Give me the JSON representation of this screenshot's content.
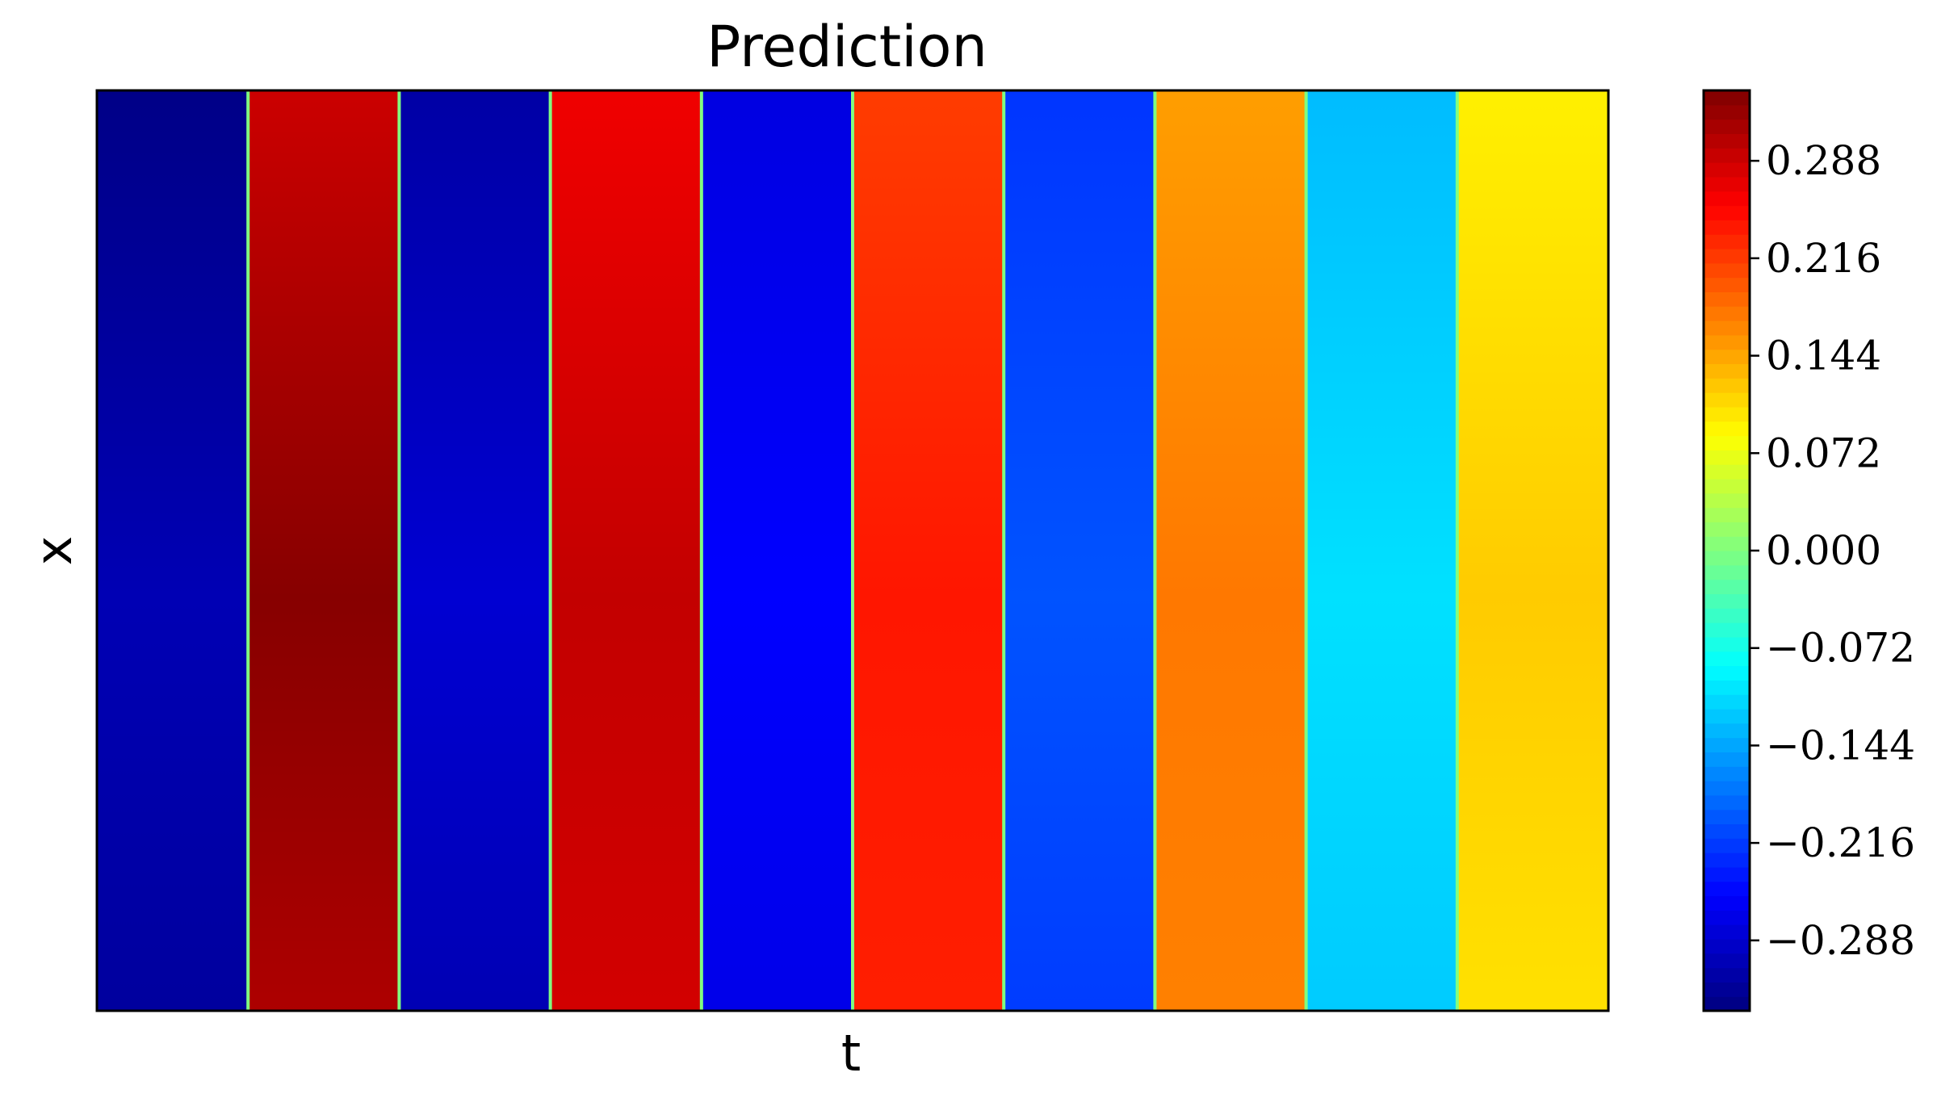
{
  "chart_data": {
    "type": "heatmap",
    "title": "Prediction",
    "xlabel": "t",
    "ylabel": "x",
    "colormap": "jet",
    "color_range": [
      -0.34,
      0.34
    ],
    "colorbar_ticks": [
      "−0.288",
      "−0.216",
      "−0.144",
      "−0.072",
      "0.000",
      "0.072",
      "0.144",
      "0.216",
      "0.288"
    ],
    "colorbar_tick_values": [
      -0.288,
      -0.216,
      -0.144,
      -0.072,
      0.0,
      0.072,
      0.144,
      0.216,
      0.288
    ],
    "x_ticks_shown": false,
    "y_ticks_shown": false,
    "bands": [
      {
        "t_start": 0.0,
        "t_end": 0.1,
        "top": -0.335,
        "mid": -0.305,
        "bottom": -0.32
      },
      {
        "t_start": 0.1,
        "t_end": 0.2,
        "top": 0.29,
        "mid": 0.335,
        "bottom": 0.31
      },
      {
        "t_start": 0.2,
        "t_end": 0.3,
        "top": -0.315,
        "mid": -0.285,
        "bottom": -0.305
      },
      {
        "t_start": 0.3,
        "t_end": 0.4,
        "top": 0.265,
        "mid": 0.295,
        "bottom": 0.285
      },
      {
        "t_start": 0.4,
        "t_end": 0.5,
        "top": -0.275,
        "mid": -0.255,
        "bottom": -0.27
      },
      {
        "t_start": 0.5,
        "t_end": 0.6,
        "top": 0.215,
        "mid": 0.24,
        "bottom": 0.235
      },
      {
        "t_start": 0.6,
        "t_end": 0.7,
        "top": -0.22,
        "mid": -0.2,
        "bottom": -0.215
      },
      {
        "t_start": 0.7,
        "t_end": 0.8,
        "top": 0.15,
        "mid": 0.175,
        "bottom": 0.17
      },
      {
        "t_start": 0.8,
        "t_end": 0.9,
        "top": -0.13,
        "mid": -0.105,
        "bottom": -0.12
      },
      {
        "t_start": 0.9,
        "t_end": 1.0,
        "top": 0.095,
        "mid": 0.12,
        "bottom": 0.105
      }
    ]
  }
}
